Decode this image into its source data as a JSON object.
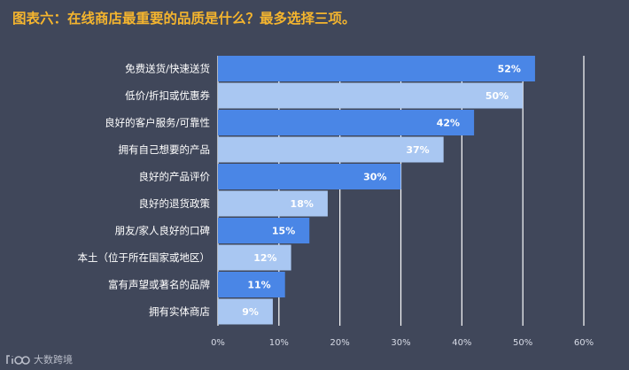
{
  "title": "图表六：在线商店最重要的品质是什么？最多选择三项。",
  "watermark": "大数跨境",
  "colors": {
    "background": "#40475a",
    "title": "#f5b52e",
    "bar_dark": "#4a86e6",
    "bar_light": "#a9c7f2",
    "gridline": "#ffffff",
    "label": "#ffffff",
    "tick": "#d7dbe6"
  },
  "chart_data": {
    "type": "bar",
    "orientation": "horizontal",
    "title": "图表六：在线商店最重要的品质是什么？最多选择三项。",
    "categories": [
      "免费送货/快速送货",
      "低价/折扣或优惠券",
      "良好的客户服务/可靠性",
      "拥有自己想要的产品",
      "良好的产品评价",
      "良好的退货政策",
      "朋友/家人良好的口碑",
      "本土（位于所在国家或地区）",
      "富有声望或著名的品牌",
      "拥有实体商店"
    ],
    "values": [
      52,
      50,
      42,
      37,
      30,
      18,
      15,
      12,
      11,
      9
    ],
    "value_labels": [
      "52%",
      "50%",
      "42%",
      "37%",
      "30%",
      "18%",
      "15%",
      "12%",
      "11%",
      "9%"
    ],
    "bar_colors": [
      "dark",
      "light",
      "dark",
      "light",
      "dark",
      "light",
      "dark",
      "light",
      "dark",
      "light"
    ],
    "xlim": [
      0,
      60
    ],
    "xticks": [
      "0%",
      "10%",
      "20%",
      "30%",
      "40%",
      "50%",
      "60%"
    ],
    "grid": true
  }
}
